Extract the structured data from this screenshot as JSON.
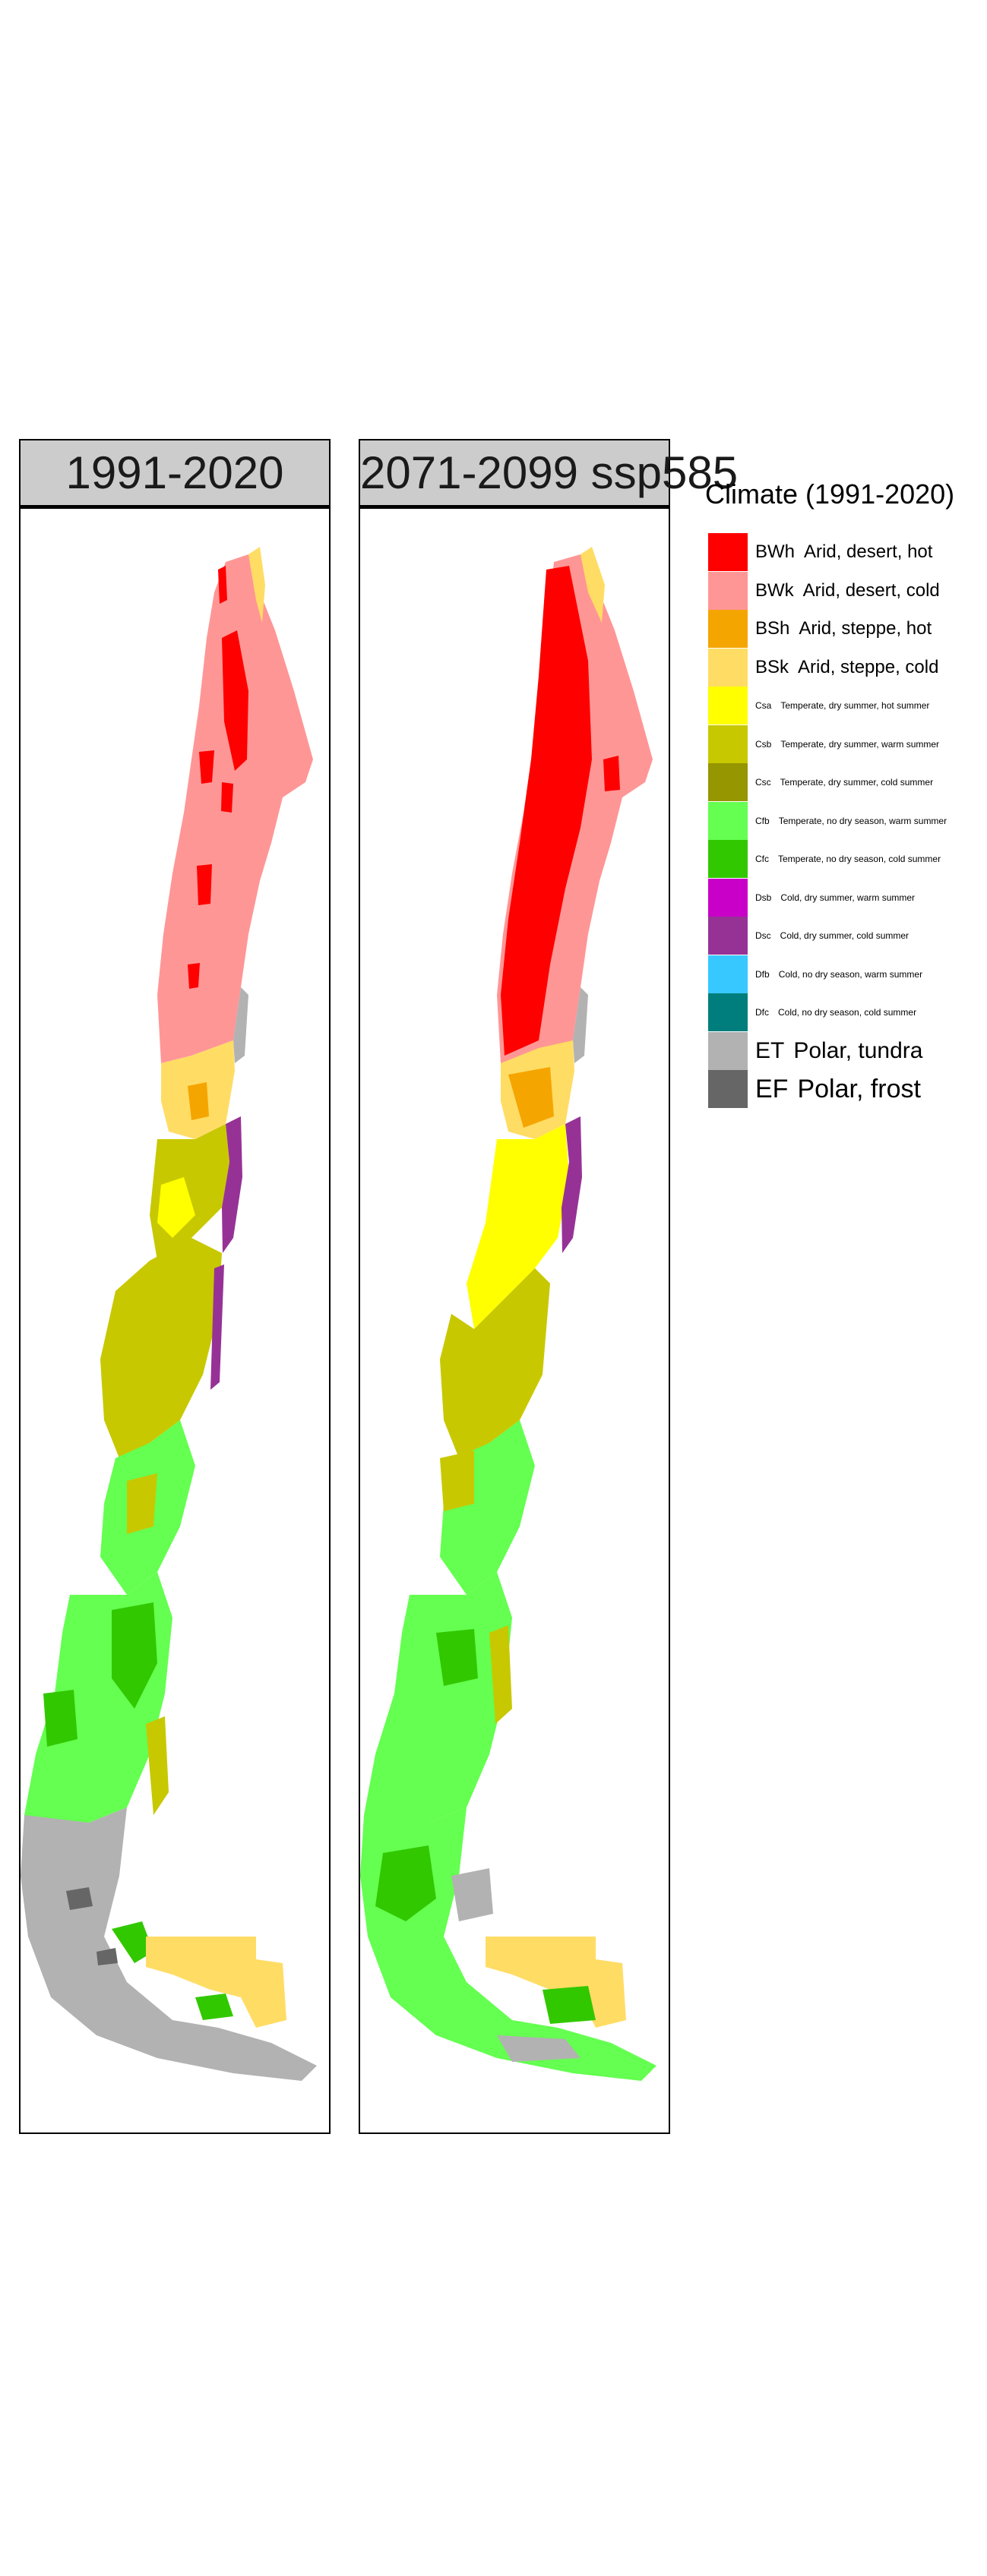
{
  "panels": [
    {
      "title": "1991-2020"
    },
    {
      "title": "2071-2099 ssp585"
    }
  ],
  "legend": {
    "title": "Climate (1991-2020)",
    "items": [
      {
        "code": "BWh",
        "label": "Arid, desert, hot",
        "color": "#ff0000"
      },
      {
        "code": "BWk",
        "label": "Arid, desert, cold",
        "color": "#ff9696"
      },
      {
        "code": "BSh",
        "label": "Arid, steppe, hot",
        "color": "#f5a500"
      },
      {
        "code": "BSk",
        "label": "Arid, steppe, cold",
        "color": "#ffdc64"
      },
      {
        "code": "Csa",
        "label": "Temperate, dry summer, hot summer",
        "color": "#ffff00"
      },
      {
        "code": "Csb",
        "label": "Temperate, dry summer, warm summer",
        "color": "#c8c800"
      },
      {
        "code": "Csc",
        "label": "Temperate, dry summer, cold summer",
        "color": "#969600"
      },
      {
        "code": "Cfb",
        "label": "Temperate, no dry season, warm summer",
        "color": "#64ff50"
      },
      {
        "code": "Cfc",
        "label": "Temperate, no dry season, cold summer",
        "color": "#32c800"
      },
      {
        "code": "Dsb",
        "label": "Cold, dry summer, warm summer",
        "color": "#c800c8"
      },
      {
        "code": "Dsc",
        "label": "Cold, dry summer, cold summer",
        "color": "#963296"
      },
      {
        "code": "Dfb",
        "label": "Cold, no dry season, warm summer",
        "color": "#37c8ff"
      },
      {
        "code": "Dfc",
        "label": "Cold, no dry season, cold summer",
        "color": "#007d7d"
      },
      {
        "code": "ET",
        "label": "Polar, tundra",
        "color": "#b2b2b2"
      },
      {
        "code": "EF",
        "label": "Polar, frost",
        "color": "#666666"
      }
    ]
  }
}
